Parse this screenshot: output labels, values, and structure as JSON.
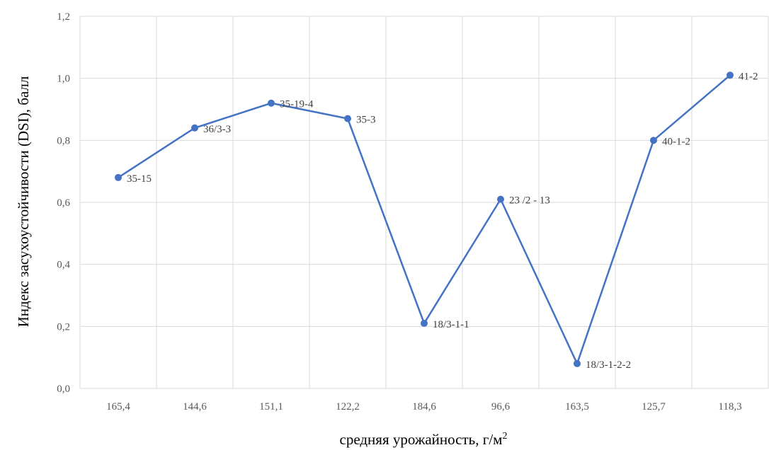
{
  "chart_data": {
    "type": "line",
    "title": "",
    "xlabel": "средняя урожайность,  г/м",
    "xlabel_sup": "2",
    "ylabel": "Индекс засухоустойчивости  (DSI), балл",
    "categories": [
      "165,4",
      "144,6",
      "151,1",
      "122,2",
      "184,6",
      "96,6",
      "163,5",
      "125,7",
      "118,3"
    ],
    "series": [
      {
        "values": [
          0.68,
          0.84,
          0.92,
          0.87,
          0.21,
          0.61,
          0.08,
          0.8,
          1.01
        ],
        "point_labels": [
          "35-15",
          "36/3-3",
          "35-19-4",
          "35-3",
          "18/3-1-1",
          "23 /2 - 13",
          "18/3-1-2-2",
          "40-1-2",
          "41-2"
        ],
        "color": "#4472c4"
      }
    ],
    "ylim": [
      0,
      1.2
    ],
    "yticks": [
      "0,0",
      "0,2",
      "0,4",
      "0,6",
      "0,8",
      "1,0",
      "1,2"
    ],
    "grid": true,
    "legend": "none"
  }
}
